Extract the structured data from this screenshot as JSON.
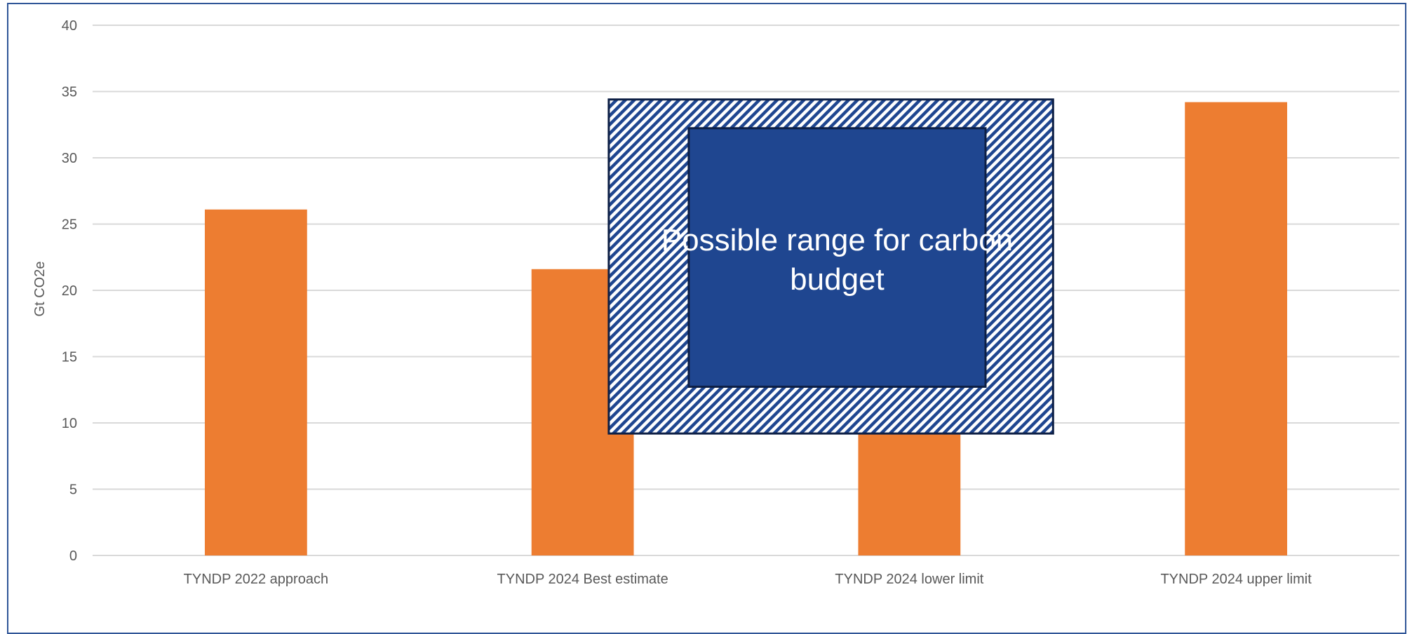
{
  "chart_data": {
    "type": "bar",
    "categories": [
      "TYNDP 2022 approach",
      "TYNDP 2024 Best estimate",
      "TYNDP 2024 lower limit",
      "TYNDP 2024 upper limit"
    ],
    "values": [
      26.1,
      21.6,
      9.4,
      34.2
    ],
    "ylabel": "Gt CO2e",
    "ylim": [
      0,
      40
    ],
    "yticks": [
      0,
      5,
      10,
      15,
      20,
      25,
      30,
      35,
      40
    ],
    "grid": true,
    "bar_color": "#ed7d31",
    "callout": {
      "lines": [
        "Possible range for carbon",
        "budget"
      ],
      "range_low": 9.2,
      "range_high": 34.4,
      "fill_color": "#1f4690",
      "hatch_color": "#1f4690"
    }
  }
}
